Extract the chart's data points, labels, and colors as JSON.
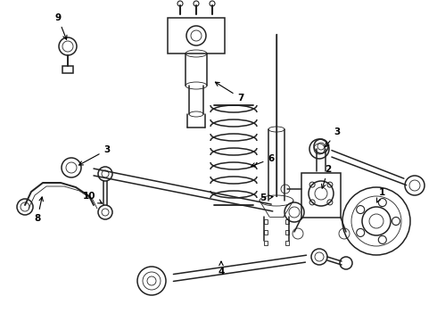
{
  "bg_color": "#ffffff",
  "line_color": "#222222",
  "fig_width": 4.9,
  "fig_height": 3.6,
  "dpi": 100,
  "lw_main": 1.1,
  "lw_thin": 0.6,
  "lw_thick": 1.6
}
